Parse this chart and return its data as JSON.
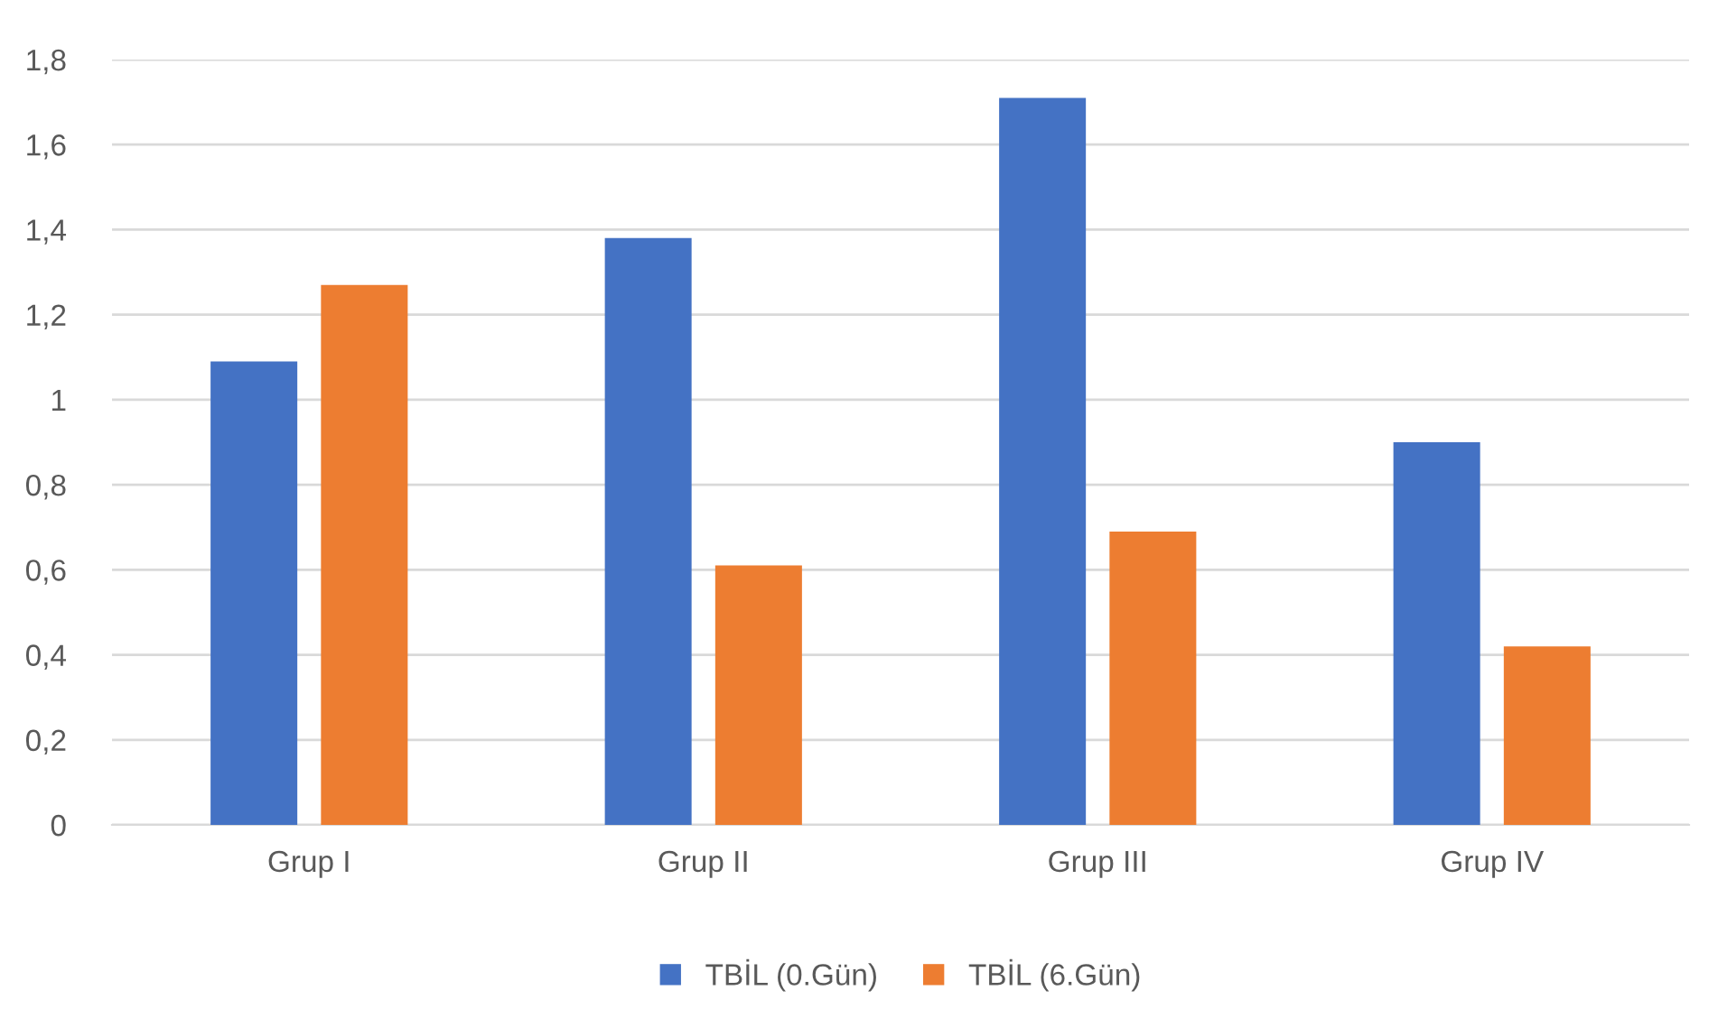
{
  "chart_data": {
    "type": "bar",
    "categories": [
      "Grup I",
      "Grup II",
      "Grup III",
      "Grup IV"
    ],
    "series": [
      {
        "name": "TBİL (0.Gün)",
        "color": "#4472c4",
        "values": [
          1.09,
          1.38,
          1.71,
          0.9
        ]
      },
      {
        "name": "TBİL (6.Gün)",
        "color": "#ed7d31",
        "values": [
          1.27,
          0.61,
          0.69,
          0.42
        ]
      }
    ],
    "ylim": [
      0,
      1.8
    ],
    "yticks": [
      0,
      {
        "value": 0.2,
        "label": "0,2"
      },
      {
        "value": 0.4,
        "label": "0,4"
      },
      {
        "value": 0.6,
        "label": "0,6"
      },
      {
        "value": 0.8,
        "label": "0,8"
      },
      1,
      {
        "value": 1.2,
        "label": "1,2"
      },
      {
        "value": 1.4,
        "label": "1,4"
      },
      {
        "value": 1.6,
        "label": "1,6"
      },
      {
        "value": 1.8,
        "label": "1,8"
      }
    ],
    "grid": "y",
    "legend": "bottom"
  }
}
